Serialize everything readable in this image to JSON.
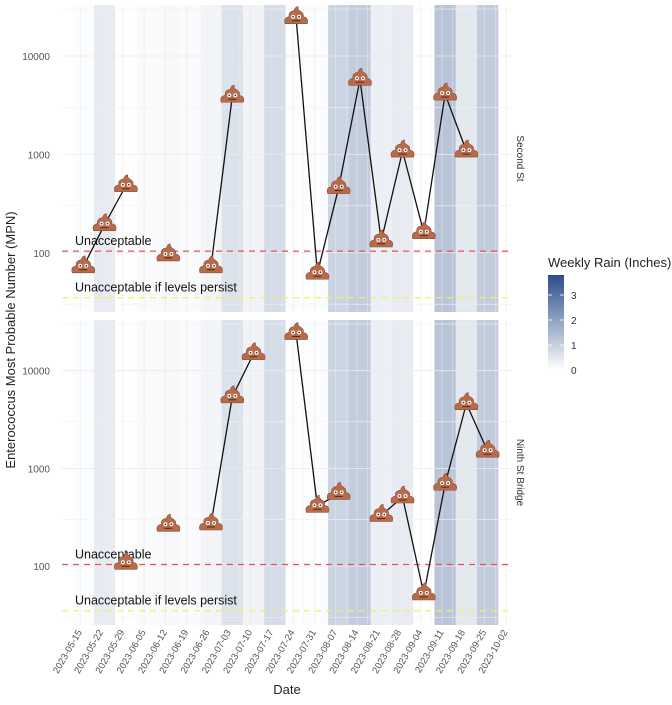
{
  "chart_data": {
    "type": "line",
    "xlabel": "Date",
    "ylabel": "Enterococcus Most Probable Number (MPN)",
    "y_scale": "log10",
    "ylim": [
      25,
      33000
    ],
    "xlim": [
      "2023-05-09",
      "2023-10-04"
    ],
    "y_ticks": [
      100,
      1000,
      10000
    ],
    "y_tick_labels": [
      "100",
      "1000",
      "10000"
    ],
    "x_ticks": [
      "2023-05-15",
      "2023-05-22",
      "2023-05-29",
      "2023-06-05",
      "2023-06-12",
      "2023-06-19",
      "2023-06-26",
      "2023-07-03",
      "2023-07-10",
      "2023-07-17",
      "2023-07-24",
      "2023-07-31",
      "2023-08-07",
      "2023-08-14",
      "2023-08-21",
      "2023-08-28",
      "2023-09-04",
      "2023-09-11",
      "2023-09-18",
      "2023-09-25",
      "2023-10-02"
    ],
    "grid": true,
    "marker": "pile-of-poo-emoji",
    "thresholds": [
      {
        "label": "Unacceptable",
        "value": 104,
        "color": "#e05555",
        "style": "dashed"
      },
      {
        "label": "Unacceptable if levels persist",
        "value": 35,
        "color": "#f2f25a",
        "style": "dashed"
      }
    ],
    "rain": {
      "legend_title": "Weekly Rain (Inches)",
      "legend_ticks": [
        "0",
        "1",
        "2",
        "3"
      ],
      "range": [
        0,
        3.8
      ],
      "color_low": "#ffffff",
      "color_high": "#2a4d8a",
      "legend_placement": "right",
      "weeks": [
        {
          "date": "2023-05-16",
          "inches": 0.1
        },
        {
          "date": "2023-05-23",
          "inches": 1.0
        },
        {
          "date": "2023-05-30",
          "inches": 0.0
        },
        {
          "date": "2023-06-06",
          "inches": 0.2
        },
        {
          "date": "2023-06-13",
          "inches": 0.3
        },
        {
          "date": "2023-06-20",
          "inches": 0.2
        },
        {
          "date": "2023-06-27",
          "inches": 0.5
        },
        {
          "date": "2023-07-04",
          "inches": 1.5
        },
        {
          "date": "2023-07-11",
          "inches": 0.6
        },
        {
          "date": "2023-07-18",
          "inches": 1.8
        },
        {
          "date": "2023-07-25",
          "inches": 0.1
        },
        {
          "date": "2023-08-01",
          "inches": 0.1
        },
        {
          "date": "2023-08-08",
          "inches": 2.2
        },
        {
          "date": "2023-08-15",
          "inches": 2.6
        },
        {
          "date": "2023-08-22",
          "inches": 0.8
        },
        {
          "date": "2023-08-29",
          "inches": 1.0
        },
        {
          "date": "2023-09-05",
          "inches": 0.0
        },
        {
          "date": "2023-09-12",
          "inches": 3.0
        },
        {
          "date": "2023-09-19",
          "inches": 1.2
        },
        {
          "date": "2023-09-26",
          "inches": 2.6
        }
      ]
    },
    "panels": [
      {
        "name": "Second St",
        "points": [
          {
            "date": "2023-05-16",
            "mpn": 72
          },
          {
            "date": "2023-05-23",
            "mpn": 193
          },
          {
            "date": "2023-05-30",
            "mpn": 480
          },
          {
            "date": "2023-06-13",
            "mpn": 95
          },
          {
            "date": "2023-06-27",
            "mpn": 72
          },
          {
            "date": "2023-07-04",
            "mpn": 3900
          },
          {
            "date": "2023-07-25",
            "mpn": 24500
          },
          {
            "date": "2023-08-01",
            "mpn": 62
          },
          {
            "date": "2023-08-08",
            "mpn": 460
          },
          {
            "date": "2023-08-15",
            "mpn": 5800
          },
          {
            "date": "2023-08-22",
            "mpn": 132
          },
          {
            "date": "2023-08-29",
            "mpn": 1080
          },
          {
            "date": "2023-09-05",
            "mpn": 160
          },
          {
            "date": "2023-09-12",
            "mpn": 4100
          },
          {
            "date": "2023-09-19",
            "mpn": 1080
          }
        ]
      },
      {
        "name": "Ninth St Bridge",
        "points": [
          {
            "date": "2023-05-30",
            "mpn": 107
          },
          {
            "date": "2023-06-13",
            "mpn": 262
          },
          {
            "date": "2023-06-27",
            "mpn": 270
          },
          {
            "date": "2023-07-04",
            "mpn": 5400
          },
          {
            "date": "2023-07-11",
            "mpn": 14900
          },
          {
            "date": "2023-07-25",
            "mpn": 24000
          },
          {
            "date": "2023-08-01",
            "mpn": 410
          },
          {
            "date": "2023-08-08",
            "mpn": 555
          },
          {
            "date": "2023-08-22",
            "mpn": 330
          },
          {
            "date": "2023-08-29",
            "mpn": 510
          },
          {
            "date": "2023-09-05",
            "mpn": 52
          },
          {
            "date": "2023-09-12",
            "mpn": 690
          },
          {
            "date": "2023-09-19",
            "mpn": 4600
          },
          {
            "date": "2023-09-26",
            "mpn": 1500
          }
        ]
      }
    ]
  }
}
